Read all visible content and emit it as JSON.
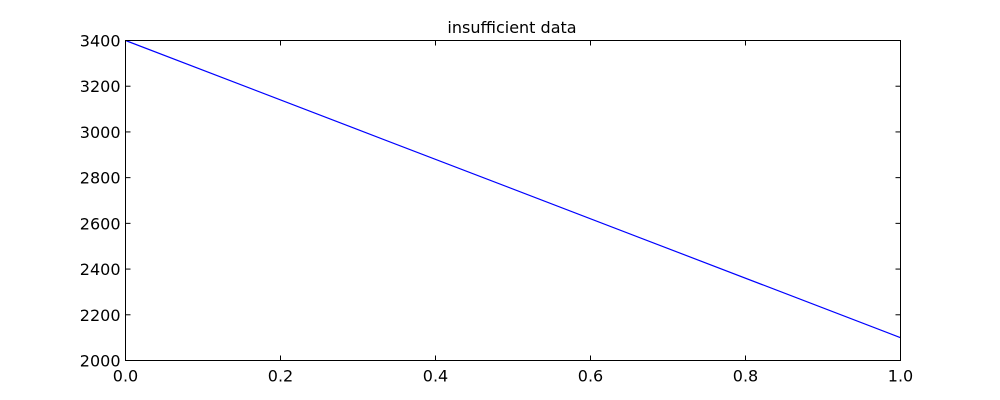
{
  "chart_data": {
    "type": "line",
    "title": "insufficient data",
    "xlabel": "",
    "ylabel": "",
    "xlim": [
      0.0,
      1.0
    ],
    "ylim": [
      2000,
      3400
    ],
    "xticks": [
      "0.0",
      "0.2",
      "0.4",
      "0.6",
      "0.8",
      "1.0"
    ],
    "yticks": [
      "2000",
      "2200",
      "2400",
      "2600",
      "2800",
      "3000",
      "3200",
      "3400"
    ],
    "grid": false,
    "legend": "none",
    "series": [
      {
        "x": [
          0.0,
          1.0
        ],
        "y": [
          3400,
          2100
        ],
        "color": "#0000ff"
      }
    ]
  }
}
